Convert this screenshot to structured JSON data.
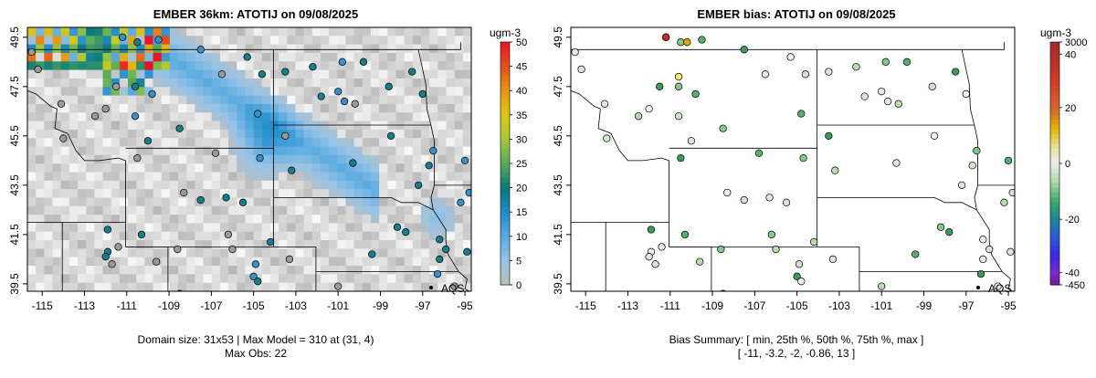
{
  "left_panel": {
    "title": "EMBER 36km: ATOTIJ on 09/08/2025",
    "footer_line1": "Domain size: 31x53 | Max Model = 310 at (31, 4)",
    "footer_line2": "Max Obs: 22",
    "colorbar_unit": "ugm-3",
    "colorbar_ticks": [
      "0",
      "5",
      "10",
      "15",
      "20",
      "25",
      "30",
      "35",
      "40",
      "45",
      "50"
    ],
    "aqs_label": "AQS"
  },
  "right_panel": {
    "title": "EMBER bias: ATOTIJ on 09/08/2025",
    "footer_line1": "Bias Summary: [ min, 25th %, 50th %, 75th %, max ]",
    "footer_line2": "[ -11,   -3.2,   -2,   -0.86,   13 ]",
    "colorbar_unit": "ugm-3",
    "colorbar_ticks": [
      "3000",
      "40",
      "20",
      "0",
      "-20",
      "-40",
      "-450"
    ],
    "aqs_label": "AQS"
  },
  "chart_data": [
    {
      "type": "heatmap",
      "title": "EMBER 36km: ATOTIJ on 09/08/2025",
      "x_ticks": [
        "-115",
        "-113",
        "-111",
        "-109",
        "-107",
        "-105",
        "-103",
        "-101",
        "-99",
        "-97",
        "-95"
      ],
      "y_ticks": [
        "39.5",
        "41.5",
        "43.5",
        "45.5",
        "47.5",
        "49.5"
      ],
      "xlim": [
        -115.7,
        -94.7
      ],
      "ylim": [
        39.2,
        49.9
      ],
      "colorbar": {
        "min": 0,
        "max": 50,
        "label": "ugm-3"
      },
      "grid": false,
      "legend_position": "right"
    },
    {
      "type": "scatter",
      "title": "EMBER bias: ATOTIJ on 09/08/2025",
      "x_ticks": [
        "-115",
        "-113",
        "-111",
        "-109",
        "-107",
        "-105",
        "-103",
        "-101",
        "-99",
        "-97",
        "-95"
      ],
      "y_ticks": [
        "39.5",
        "41.5",
        "43.5",
        "45.5",
        "47.5",
        "49.5"
      ],
      "xlim": [
        -115.7,
        -94.7
      ],
      "ylim": [
        39.2,
        49.9
      ],
      "colorbar": {
        "label": "ugm-3",
        "ticks": [
          "3000",
          "40",
          "20",
          "0",
          "-20",
          "-40",
          "-450"
        ]
      },
      "bias_summary": {
        "min": -11,
        "p25": -3.2,
        "p50": -2,
        "p75": -0.86,
        "max": 13
      },
      "legend_position": "right"
    }
  ]
}
